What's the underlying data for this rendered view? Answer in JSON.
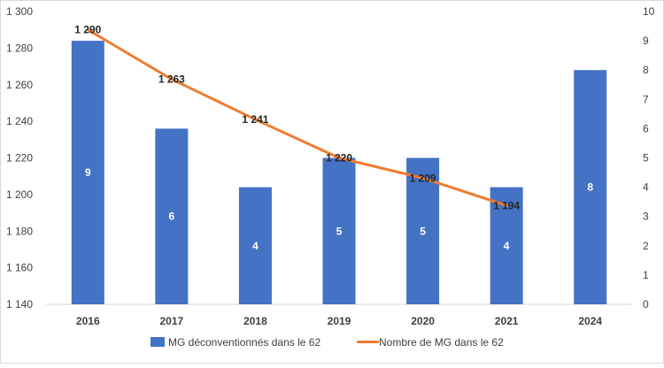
{
  "chart_data": {
    "type": "bar",
    "categories": [
      "2016",
      "2017",
      "2018",
      "2019",
      "2020",
      "2021",
      "2024"
    ],
    "series": [
      {
        "name": "MG déconventionnés dans le 62",
        "type": "bar",
        "axis": "right",
        "color": "#4472C4",
        "values": [
          9,
          6,
          4,
          5,
          5,
          4,
          8
        ],
        "labels": [
          "9",
          "6",
          "4",
          "5",
          "5",
          "4",
          "8"
        ]
      },
      {
        "name": "Nombre de MG dans le 62",
        "type": "line",
        "axis": "left",
        "color": "#ED7D31",
        "values": [
          1290,
          1263,
          1241,
          1220,
          1209,
          1194,
          null
        ],
        "labels": [
          "1 290",
          "1 263",
          "1 241",
          "1 220",
          "1 209",
          "1 194",
          ""
        ]
      }
    ],
    "left_axis": {
      "min": 1140,
      "max": 1300,
      "ticks": [
        1140,
        1160,
        1180,
        1200,
        1220,
        1240,
        1260,
        1280,
        1300
      ],
      "tick_labels": [
        "1 140",
        "1 160",
        "1 180",
        "1 200",
        "1 220",
        "1 240",
        "1 260",
        "1 280",
        "1 300"
      ]
    },
    "right_axis": {
      "min": 0,
      "max": 10,
      "ticks": [
        0,
        1,
        2,
        3,
        4,
        5,
        6,
        7,
        8,
        9,
        10
      ],
      "tick_labels": [
        "0",
        "1",
        "2",
        "3",
        "4",
        "5",
        "6",
        "7",
        "8",
        "9",
        "10"
      ]
    },
    "title": "",
    "xlabel": "",
    "ylabel": "",
    "grid": false,
    "legend": {
      "position": "bottom",
      "entries": [
        "MG déconventionnés dans le 62",
        "Nombre de MG dans le 62"
      ]
    }
  }
}
